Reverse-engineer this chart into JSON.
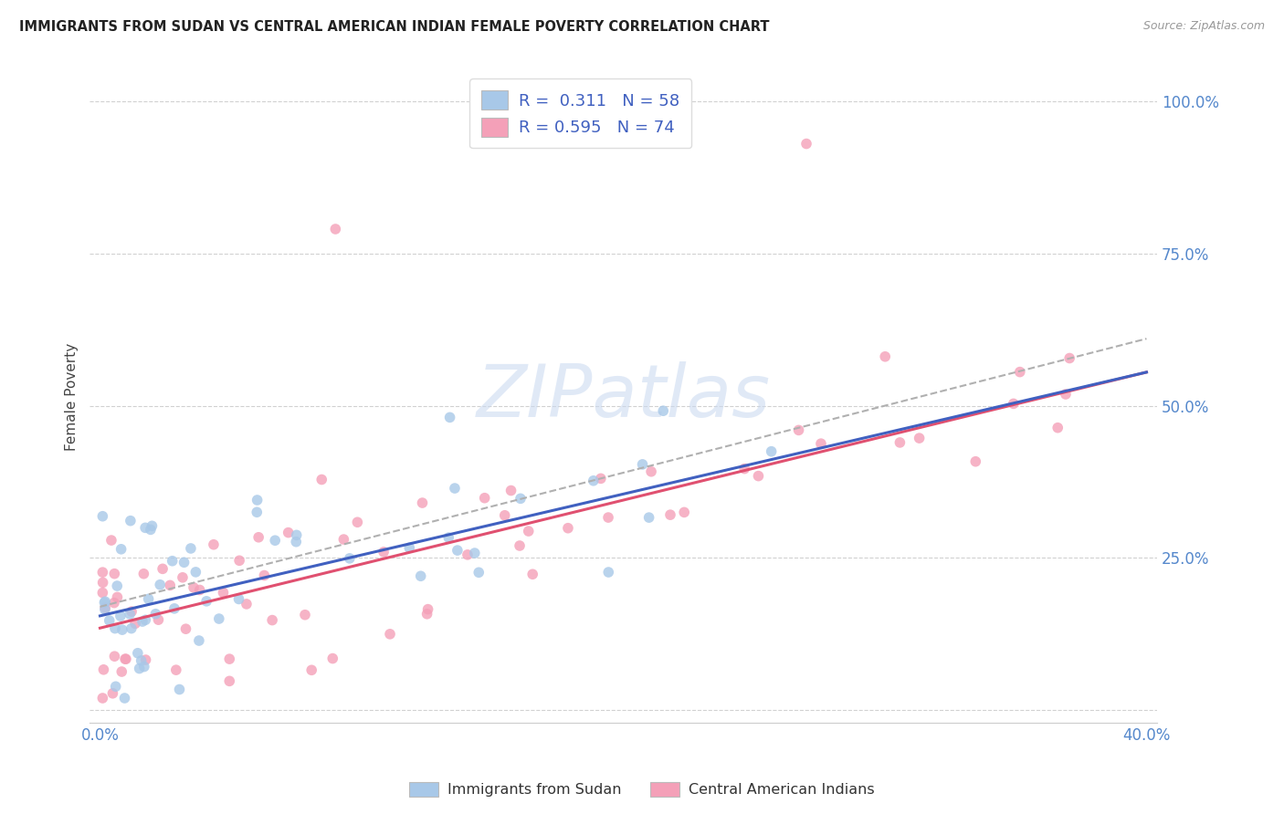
{
  "title": "IMMIGRANTS FROM SUDAN VS CENTRAL AMERICAN INDIAN FEMALE POVERTY CORRELATION CHART",
  "source": "Source: ZipAtlas.com",
  "ylabel": "Female Poverty",
  "xlim": [
    0.0,
    0.4
  ],
  "ylim": [
    0.0,
    1.05
  ],
  "legend_r1": "R =  0.311",
  "legend_n1": "N = 58",
  "legend_r2": "R = 0.595",
  "legend_n2": "N = 74",
  "legend_label1": "Immigrants from Sudan",
  "legend_label2": "Central American Indians",
  "color_sudan": "#a8c8e8",
  "color_ca": "#f4a0b8",
  "color_line_sudan": "#4060c0",
  "color_line_ca": "#e05070",
  "color_line_dashed": "#b0b0b0",
  "sudan_intercept": 0.155,
  "sudan_slope": 1.0,
  "ca_intercept": 0.135,
  "ca_slope": 1.05,
  "dashed_intercept": 0.17,
  "dashed_slope": 1.1
}
